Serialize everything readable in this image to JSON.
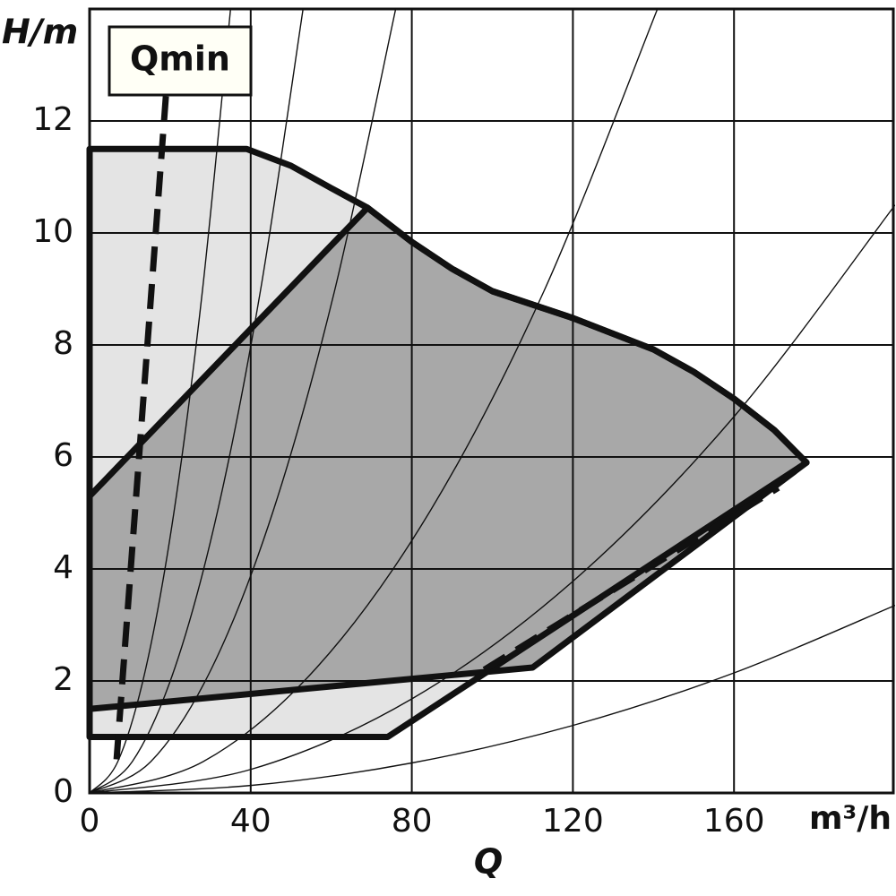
{
  "chart_data": {
    "type": "area",
    "ylabel": "H/m",
    "xlabel": "Q",
    "xunit": "m³/h",
    "annotation": "Qmin",
    "xlim": [
      0,
      200
    ],
    "ylim": [
      0,
      14
    ],
    "xticks": [
      0,
      40,
      80,
      120,
      160
    ],
    "yticks": [
      0,
      2,
      4,
      6,
      8,
      10,
      12
    ],
    "grid": true,
    "series": [
      {
        "color": "#e4e4e4",
        "x": [
          0,
          39,
          50,
          60,
          69,
          80,
          90,
          100,
          110,
          120,
          130,
          140,
          150,
          160,
          170,
          178,
          74,
          0
        ],
        "values": [
          11.5,
          11.5,
          11.2,
          10.8,
          10.45,
          9.84,
          9.36,
          8.96,
          8.72,
          8.48,
          8.2,
          7.92,
          7.52,
          7.04,
          6.48,
          5.9,
          1,
          1
        ]
      },
      {
        "color": "#a8a8a8",
        "x": [
          0,
          69,
          80,
          90,
          100,
          110,
          120,
          130,
          140,
          150,
          160,
          170,
          178,
          110,
          0
        ],
        "values": [
          5.3,
          10.45,
          9.84,
          9.36,
          8.96,
          8.72,
          8.48,
          8.2,
          7.92,
          7.52,
          7.04,
          6.48,
          5.9,
          2.24,
          1.5
        ]
      }
    ],
    "dashed_lines": [
      {
        "x": [
          6.7,
          19
        ],
        "values": [
          0.6,
          12.5
        ]
      },
      {
        "x": [
          98,
          171
        ],
        "values": [
          2.2,
          5.45
        ]
      }
    ],
    "system_curves": [
      {
        "x": [
          0,
          7,
          14,
          21,
          28,
          35
        ],
        "values": [
          0,
          0.56,
          2.24,
          5.04,
          8.96,
          14
        ]
      },
      {
        "x": [
          0,
          10.6,
          21.2,
          31.8,
          42.4,
          53
        ],
        "values": [
          0,
          0.56,
          2.24,
          5.04,
          8.96,
          14
        ]
      },
      {
        "x": [
          0,
          15.2,
          30.4,
          45.6,
          60.8,
          76
        ],
        "values": [
          0,
          0.56,
          2.24,
          5.04,
          8.96,
          14
        ]
      },
      {
        "x": [
          0,
          28.2,
          56.4,
          84.6,
          112.8,
          141
        ],
        "values": [
          0,
          0.56,
          2.24,
          5.04,
          8.96,
          14
        ]
      },
      {
        "x": [
          0,
          40,
          80,
          120,
          160,
          200
        ],
        "values": [
          0,
          0.42,
          1.68,
          3.78,
          6.72,
          10.5
        ]
      },
      {
        "x": [
          0,
          40,
          80,
          120,
          160,
          200
        ],
        "values": [
          0,
          0.134,
          0.536,
          1.206,
          2.144,
          3.35
        ]
      }
    ]
  }
}
